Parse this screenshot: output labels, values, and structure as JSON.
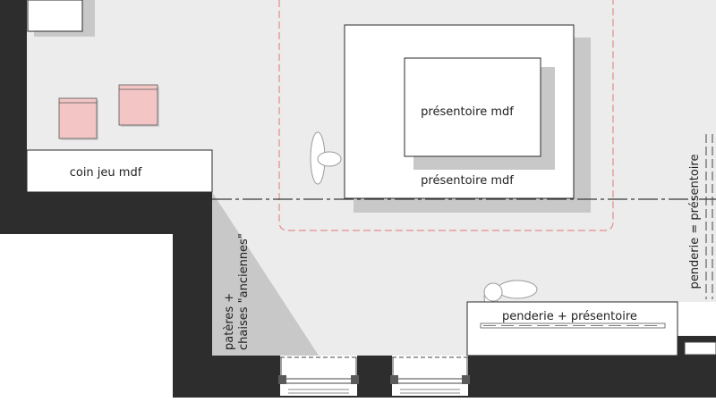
{
  "labels": {
    "coin_jeu": "coin jeu mdf",
    "presentoire_inner": "présentoire mdf",
    "presentoire_outer": "présentoire mdf",
    "pateres_line1": "patères +",
    "pateres_line2": "chaises \"anciennes\"",
    "penderie_presentoire": "penderie + présentoire",
    "penderie_equals": "penderie = présentoire"
  },
  "colors": {
    "wall": "#2d2d2d",
    "floor": "#ececec",
    "furniture": "#ffffff",
    "shadow": "#c8c8c8",
    "stool": "#f4c5c5",
    "zone_outline": "#e28b8b",
    "axis_line": "#3a3a3a"
  }
}
